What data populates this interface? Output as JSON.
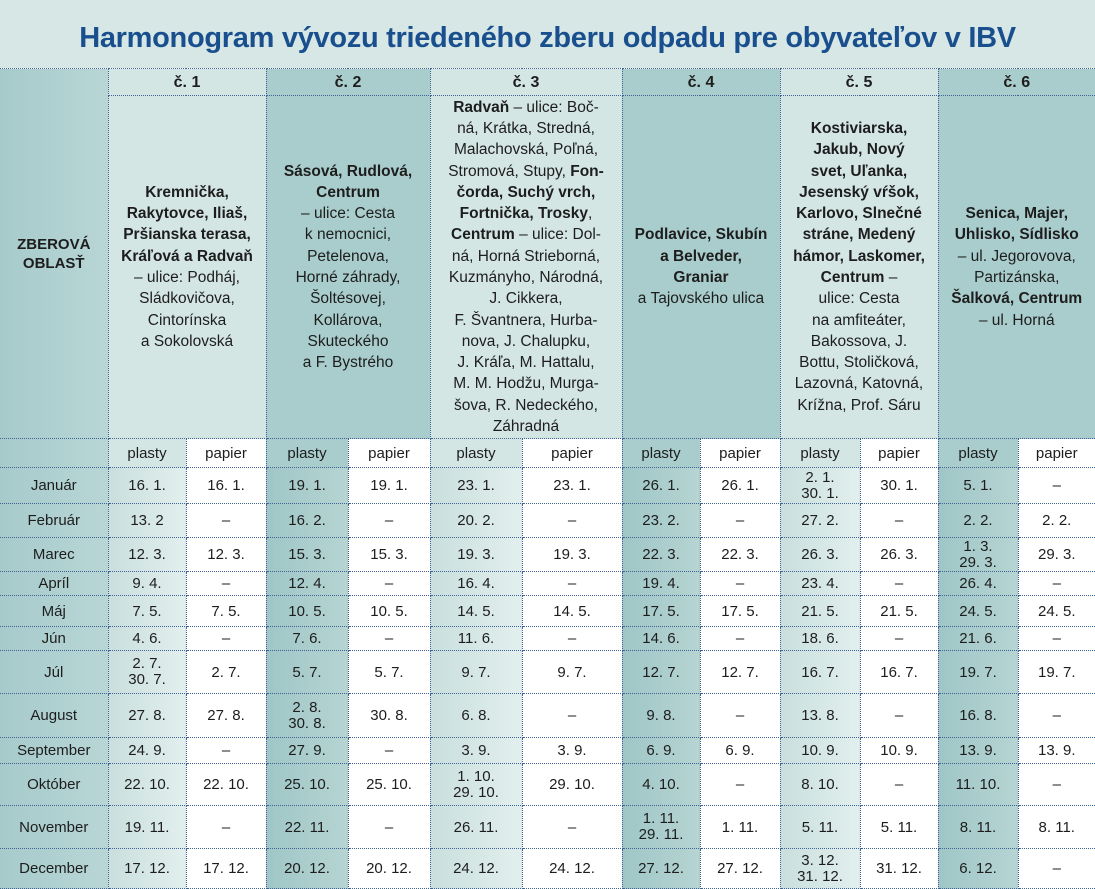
{
  "title": "Harmonogram vývozu triedeného zberu odpadu pre obyvateľov v IBV",
  "area_label_line1": "ZBEROVÁ",
  "area_label_line2": "OBLASŤ",
  "columns": [
    {
      "label": "č. 1",
      "lines": [
        [
          [
            "Kremnička,",
            1
          ]
        ],
        [
          [
            "Rakytovce, Iliaš,",
            1
          ]
        ],
        [
          [
            "Pršianska terasa,",
            1
          ]
        ],
        [
          [
            "Kráľová a Radvaň",
            1
          ]
        ],
        [
          [
            "– ulice: Podháj,",
            0
          ]
        ],
        [
          [
            "Sládkovičova,",
            0
          ]
        ],
        [
          [
            "Cintorínska",
            0
          ]
        ],
        [
          [
            "a Sokolovská",
            0
          ]
        ]
      ]
    },
    {
      "label": "č. 2",
      "lines": [
        [
          [
            "Sásová, Rudlová,",
            1
          ]
        ],
        [
          [
            "Centrum",
            1
          ]
        ],
        [
          [
            "– ulice: Cesta",
            0
          ]
        ],
        [
          [
            "k nemocnici,",
            0
          ]
        ],
        [
          [
            "Petelenova,",
            0
          ]
        ],
        [
          [
            "Horné záhrady,",
            0
          ]
        ],
        [
          [
            "Šoltésovej,",
            0
          ]
        ],
        [
          [
            "Kollárova,",
            0
          ]
        ],
        [
          [
            "Skuteckého",
            0
          ]
        ],
        [
          [
            "a F. Bystrého",
            0
          ]
        ]
      ]
    },
    {
      "label": "č. 3",
      "lines": [
        [
          [
            "Radvaň",
            1
          ],
          [
            " – ulice: Boč-",
            0
          ]
        ],
        [
          [
            "ná, Krátka, Stredná,",
            0
          ]
        ],
        [
          [
            "Malachovská, Poľná,",
            0
          ]
        ],
        [
          [
            "Stromová, Stupy, ",
            0
          ],
          [
            "Fon-",
            1
          ]
        ],
        [
          [
            "čorda, Suchý vrch,",
            1
          ]
        ],
        [
          [
            "Fortnička, Trosky",
            1
          ],
          [
            ",",
            0
          ]
        ],
        [
          [
            "Centrum",
            1
          ],
          [
            " – ulice: Dol-",
            0
          ]
        ],
        [
          [
            "ná, Horná Strieborná,",
            0
          ]
        ],
        [
          [
            "Kuzmányho, Národná,",
            0
          ]
        ],
        [
          [
            "J. Cikkera,",
            0
          ]
        ],
        [
          [
            "F. Švantnera, Hurba-",
            0
          ]
        ],
        [
          [
            "nova, J. Chalupku,",
            0
          ]
        ],
        [
          [
            "J. Kráľa, M. Hattalu,",
            0
          ]
        ],
        [
          [
            "M. M. Hodžu, Murga-",
            0
          ]
        ],
        [
          [
            "šova, R. Nedeckého,",
            0
          ]
        ],
        [
          [
            "Záhradná",
            0
          ]
        ]
      ]
    },
    {
      "label": "č. 4",
      "lines": [
        [
          [
            "Podlavice, Skubín",
            1
          ]
        ],
        [
          [
            "a Belveder,",
            1
          ]
        ],
        [
          [
            "Graniar",
            1
          ]
        ],
        [
          [
            "a Tajovského ulica",
            0
          ]
        ]
      ]
    },
    {
      "label": "č. 5",
      "lines": [
        [
          [
            "Kostiviarska,",
            1
          ]
        ],
        [
          [
            "Jakub, Nový",
            1
          ]
        ],
        [
          [
            "svet, Uľanka,",
            1
          ]
        ],
        [
          [
            "Jesenský vŕšok,",
            1
          ]
        ],
        [
          [
            "Karlovo, Slnečné",
            1
          ]
        ],
        [
          [
            "stráne, Medený",
            1
          ]
        ],
        [
          [
            "hámor, Laskomer,",
            1
          ]
        ],
        [
          [
            "Centrum",
            1
          ],
          [
            " –",
            0
          ]
        ],
        [
          [
            "ulice: Cesta",
            0
          ]
        ],
        [
          [
            "na amfiteáter,",
            0
          ]
        ],
        [
          [
            "Bakossova, J.",
            0
          ]
        ],
        [
          [
            "Bottu, Stoličková,",
            0
          ]
        ],
        [
          [
            "Lazovná, Katovná,",
            0
          ]
        ],
        [
          [
            "Krížna, Prof. Sáru",
            0
          ]
        ]
      ]
    },
    {
      "label": "č. 6",
      "lines": [
        [
          [
            "Senica, Majer,",
            1
          ]
        ],
        [
          [
            "Uhlisko, Sídlisko",
            1
          ]
        ],
        [
          [
            "– ul. Jegorovova,",
            0
          ]
        ],
        [
          [
            "Partizánska,",
            0
          ]
        ],
        [
          [
            "Šalková, Centrum",
            1
          ]
        ],
        [
          [
            "– ul. Horná",
            0
          ]
        ]
      ]
    }
  ],
  "sub_headers": {
    "plasty": "plasty",
    "papier": "papier"
  },
  "months": [
    {
      "name": "Január",
      "cells": [
        "16. 1.",
        "16. 1.",
        "19. 1.",
        "19. 1.",
        "23. 1.",
        "23. 1.",
        "26. 1.",
        "26. 1.",
        "2. 1.\n30. 1.",
        "30. 1.",
        "5. 1.",
        "–"
      ]
    },
    {
      "name": "Február",
      "cells": [
        "13. 2",
        "–",
        "16. 2.",
        "–",
        "20. 2.",
        "–",
        "23. 2.",
        "–",
        "27. 2.",
        "–",
        "2. 2.",
        "2. 2."
      ]
    },
    {
      "name": "Marec",
      "cells": [
        "12. 3.",
        "12. 3.",
        "15. 3.",
        "15. 3.",
        "19. 3.",
        "19. 3.",
        "22. 3.",
        "22. 3.",
        "26. 3.",
        "26. 3.",
        "1. 3.\n29. 3.",
        "29. 3."
      ]
    },
    {
      "name": "Apríl",
      "cells": [
        "9. 4.",
        "–",
        "12. 4.",
        "–",
        "16. 4.",
        "–",
        "19. 4.",
        "–",
        "23. 4.",
        "–",
        "26. 4.",
        "–"
      ]
    },
    {
      "name": "Máj",
      "cells": [
        "7. 5.",
        "7. 5.",
        "10. 5.",
        "10. 5.",
        "14. 5.",
        "14. 5.",
        "17. 5.",
        "17. 5.",
        "21. 5.",
        "21. 5.",
        "24. 5.",
        "24. 5."
      ]
    },
    {
      "name": "Jún",
      "cells": [
        "4. 6.",
        "–",
        "7. 6.",
        "–",
        "11. 6.",
        "–",
        "14. 6.",
        "–",
        "18. 6.",
        "–",
        "21. 6.",
        "–"
      ]
    },
    {
      "name": "Júl",
      "cells": [
        "2. 7.\n30. 7.",
        "2. 7.",
        "5. 7.",
        "5. 7.",
        "9. 7.",
        "9. 7.",
        "12. 7.",
        "12. 7.",
        "16. 7.",
        "16. 7.",
        "19. 7.",
        "19. 7."
      ]
    },
    {
      "name": "August",
      "cells": [
        "27. 8.",
        "27. 8.",
        "2. 8.\n30. 8.",
        "30. 8.",
        "6. 8.",
        "–",
        "9. 8.",
        "–",
        "13. 8.",
        "–",
        "16. 8.",
        "–"
      ]
    },
    {
      "name": "September",
      "cells": [
        "24. 9.",
        "–",
        "27. 9.",
        "–",
        "3. 9.",
        "3. 9.",
        "6. 9.",
        "6. 9.",
        "10. 9.",
        "10. 9.",
        "13. 9.",
        "13. 9."
      ]
    },
    {
      "name": "Október",
      "cells": [
        "22. 10.",
        "22. 10.",
        "25. 10.",
        "25. 10.",
        "1. 10.\n29. 10.",
        "29. 10.",
        "4. 10.",
        "–",
        "8. 10.",
        "–",
        "11. 10.",
        "–"
      ]
    },
    {
      "name": "November",
      "cells": [
        "19. 11.",
        "–",
        "22. 11.",
        "–",
        "26. 11.",
        "–",
        "1. 11.\n29. 11.",
        "1. 11.",
        "5. 11.",
        "5. 11.",
        "8. 11.",
        "8. 11."
      ]
    },
    {
      "name": "December",
      "cells": [
        "17. 12.",
        "17. 12.",
        "20. 12.",
        "20. 12.",
        "24. 12.",
        "24. 12.",
        "27. 12.",
        "27. 12.",
        "3. 12.\n31. 12.",
        "31. 12.",
        "6. 12.",
        "–"
      ]
    }
  ],
  "colors": {
    "title": "#1a4f8e",
    "light": "#d4e6e4",
    "dark": "#a9cdcc",
    "border": "#3f6392"
  }
}
